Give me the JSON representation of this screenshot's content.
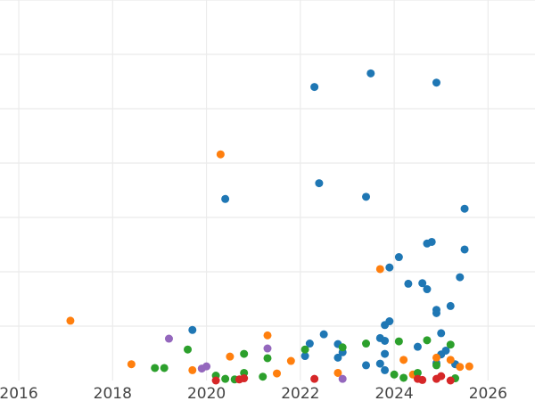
{
  "chart_data": {
    "type": "scatter",
    "title": "",
    "xlabel": "",
    "ylabel": "",
    "xlim": [
      2015.6,
      2027.0
    ],
    "ylim": [
      0,
      7.0
    ],
    "x_ticks": [
      2016,
      2018,
      2020,
      2022,
      2024,
      2026
    ],
    "x_tick_labels": [
      "2016",
      "2018",
      "2020",
      "2022",
      "2024",
      "2026"
    ],
    "y_gridlines": [
      1,
      2,
      3,
      4,
      5,
      6,
      7
    ],
    "grid": true,
    "legend": "none",
    "series": [
      {
        "color": "#1f77b4",
        "points": [
          [
            2019.7,
            0.93
          ],
          [
            2020.4,
            3.34
          ],
          [
            2022.3,
            5.4
          ],
          [
            2022.4,
            3.63
          ],
          [
            2022.2,
            0.68
          ],
          [
            2022.5,
            0.85
          ],
          [
            2022.1,
            0.45
          ],
          [
            2022.8,
            0.67
          ],
          [
            2022.9,
            0.52
          ],
          [
            2022.8,
            0.42
          ],
          [
            2023.4,
            3.38
          ],
          [
            2023.5,
            5.65
          ],
          [
            2023.4,
            0.28
          ],
          [
            2023.7,
            0.78
          ],
          [
            2023.7,
            0.31
          ],
          [
            2023.8,
            0.73
          ],
          [
            2023.8,
            1.02
          ],
          [
            2023.9,
            1.09
          ],
          [
            2023.8,
            0.49
          ],
          [
            2023.8,
            0.19
          ],
          [
            2023.9,
            2.08
          ],
          [
            2024.1,
            2.27
          ],
          [
            2024.3,
            1.78
          ],
          [
            2024.5,
            0.62
          ],
          [
            2024.6,
            1.79
          ],
          [
            2024.7,
            1.68
          ],
          [
            2024.7,
            2.52
          ],
          [
            2024.8,
            2.55
          ],
          [
            2024.9,
            5.48
          ],
          [
            2024.9,
            1.24
          ],
          [
            2024.9,
            1.3
          ],
          [
            2024.9,
            0.32
          ],
          [
            2025.0,
            0.87
          ],
          [
            2025.0,
            0.48
          ],
          [
            2025.1,
            0.55
          ],
          [
            2025.2,
            1.37
          ],
          [
            2025.3,
            0.3
          ],
          [
            2025.4,
            1.9
          ],
          [
            2025.5,
            3.16
          ],
          [
            2025.5,
            2.41
          ]
        ]
      },
      {
        "color": "#ff7f0e",
        "points": [
          [
            2017.1,
            1.1
          ],
          [
            2018.4,
            0.3
          ],
          [
            2019.7,
            0.19
          ],
          [
            2020.3,
            4.16
          ],
          [
            2020.5,
            0.44
          ],
          [
            2021.3,
            0.83
          ],
          [
            2021.5,
            0.13
          ],
          [
            2021.8,
            0.36
          ],
          [
            2022.8,
            0.14
          ],
          [
            2023.7,
            2.05
          ],
          [
            2024.2,
            0.38
          ],
          [
            2024.4,
            0.11
          ],
          [
            2024.9,
            0.42
          ],
          [
            2025.2,
            0.38
          ],
          [
            2025.4,
            0.25
          ],
          [
            2025.6,
            0.26
          ]
        ]
      },
      {
        "color": "#2ca02c",
        "points": [
          [
            2018.9,
            0.23
          ],
          [
            2019.1,
            0.23
          ],
          [
            2019.6,
            0.57
          ],
          [
            2020.2,
            0.09
          ],
          [
            2020.4,
            0.03
          ],
          [
            2020.6,
            0.02
          ],
          [
            2020.8,
            0.14
          ],
          [
            2020.8,
            0.49
          ],
          [
            2021.2,
            0.07
          ],
          [
            2021.3,
            0.41
          ],
          [
            2022.1,
            0.57
          ],
          [
            2022.9,
            0.61
          ],
          [
            2023.4,
            0.68
          ],
          [
            2024.0,
            0.11
          ],
          [
            2024.1,
            0.72
          ],
          [
            2024.2,
            0.05
          ],
          [
            2024.5,
            0.14
          ],
          [
            2024.7,
            0.74
          ],
          [
            2024.9,
            0.28
          ],
          [
            2025.2,
            0.66
          ],
          [
            2025.3,
            0.04
          ]
        ]
      },
      {
        "color": "#d62728",
        "points": [
          [
            2020.2,
            0.0
          ],
          [
            2020.7,
            0.02
          ],
          [
            2020.8,
            0.04
          ],
          [
            2022.3,
            0.03
          ],
          [
            2024.5,
            0.03
          ],
          [
            2024.6,
            0.01
          ],
          [
            2024.9,
            0.03
          ],
          [
            2025.0,
            0.08
          ],
          [
            2025.2,
            0.0
          ]
        ]
      },
      {
        "color": "#9467bd",
        "points": [
          [
            2019.2,
            0.77
          ],
          [
            2019.9,
            0.22
          ],
          [
            2020.0,
            0.26
          ],
          [
            2021.3,
            0.59
          ],
          [
            2022.9,
            0.03
          ]
        ]
      }
    ]
  }
}
